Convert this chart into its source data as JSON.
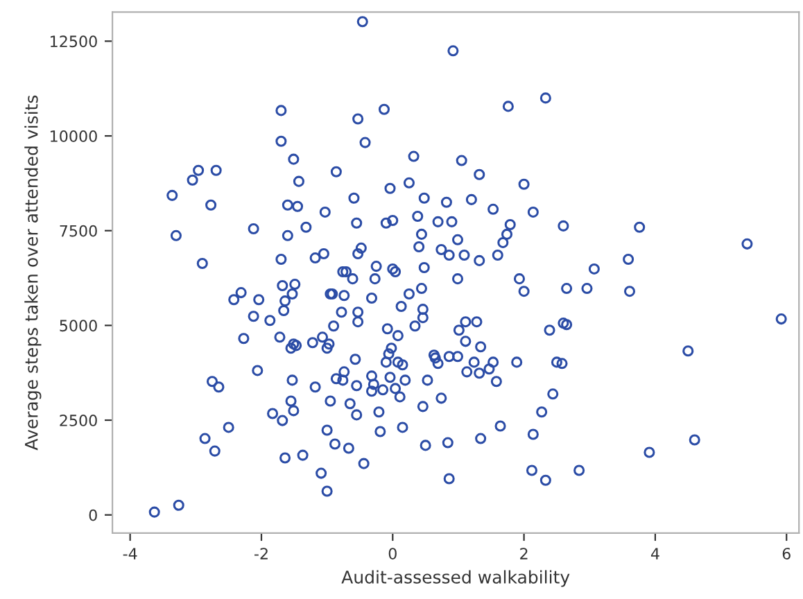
{
  "chart_data": {
    "type": "scatter",
    "xlabel": "Audit-assessed walkability",
    "ylabel": "Average steps taken over attended visits",
    "xlim": [
      -4.27,
      6.19
    ],
    "ylim": [
      -480,
      13270
    ],
    "xticks": [
      -4,
      -2,
      0,
      2,
      4,
      6
    ],
    "yticks": [
      0,
      2500,
      5000,
      7500,
      10000,
      12500
    ],
    "grid": false,
    "legend": false,
    "marker": "circle",
    "series": [
      {
        "color": "#2b4ca6",
        "x": [
          -0.46,
          0.92,
          -0.53,
          -0.13,
          -0.42,
          1.76,
          2.33,
          0.32,
          1.05,
          -0.86,
          1.32,
          0.25,
          -0.04,
          2.0,
          -0.59,
          0.48,
          0.82,
          1.2,
          1.53,
          2.14,
          -0.55,
          -0.1,
          0.0,
          0.38,
          0.69,
          0.9,
          1.79,
          2.6,
          0.44,
          1.74,
          0.99,
          1.68,
          -0.48,
          -0.53,
          0.4,
          0.74,
          0.86,
          1.09,
          1.32,
          1.6,
          -0.71,
          -0.25,
          0.0,
          0.04,
          0.48,
          3.76,
          5.4,
          3.59,
          3.07,
          -1.7,
          -1.7,
          -1.51,
          -2.96,
          -2.69,
          -3.05,
          -1.43,
          -3.36,
          -2.77,
          -1.6,
          -1.45,
          -1.03,
          -3.3,
          -2.12,
          -1.32,
          -1.6,
          -2.9,
          -1.7,
          -1.18,
          -1.05,
          -0.76,
          -1.68,
          -1.49,
          -2.42,
          -2.31,
          -2.04,
          -1.64,
          -1.53,
          -1.66,
          -0.95,
          -2.12,
          -1.87,
          -0.9,
          -0.78,
          -2.27,
          -1.72,
          -1.55,
          -1.51,
          -1.47,
          -1.22,
          -1.07,
          -0.97,
          -1.0,
          -2.06,
          -2.75,
          -2.65,
          -1.53,
          -1.18,
          -0.86,
          -0.76,
          -0.74,
          -1.55,
          -1.51,
          -0.95,
          -1.83,
          -1.68,
          -2.5,
          -2.86,
          -2.71,
          -1.0,
          -0.88,
          -1.64,
          -1.37,
          -1.09,
          -1.0,
          -3.26,
          -3.63,
          -0.61,
          -0.27,
          0.99,
          1.93,
          2.0,
          -0.92,
          -0.74,
          -0.32,
          0.25,
          0.44,
          -0.53,
          -0.53,
          0.13,
          0.46,
          0.46,
          -0.08,
          0.08,
          0.34,
          1.01,
          1.11,
          1.28,
          1.11,
          1.34,
          2.39,
          2.6,
          -0.57,
          -0.02,
          -0.06,
          -0.1,
          0.08,
          0.15,
          0.63,
          0.65,
          0.69,
          0.86,
          0.99,
          1.24,
          1.53,
          1.47,
          1.32,
          1.13,
          1.58,
          1.89,
          2.5,
          2.58,
          -0.55,
          -0.32,
          -0.32,
          -0.29,
          -0.15,
          -0.04,
          0.04,
          0.19,
          0.11,
          0.53,
          0.74,
          -0.65,
          -0.55,
          -0.21,
          0.46,
          2.44,
          2.27,
          1.64,
          0.15,
          -0.19,
          1.34,
          2.14,
          -0.67,
          0.5,
          0.84,
          -0.44,
          0.86,
          2.12,
          2.33,
          2.65,
          2.96,
          3.61,
          5.92,
          2.65,
          4.5,
          4.6,
          3.91,
          2.84
        ],
        "values": [
          13015,
          12245,
          10450,
          10700,
          9825,
          10780,
          11000,
          9460,
          9350,
          9055,
          8980,
          8760,
          8615,
          8725,
          8360,
          8360,
          8250,
          8320,
          8065,
          7990,
          7700,
          7700,
          7770,
          7880,
          7735,
          7735,
          7660,
          7625,
          7405,
          7405,
          7260,
          7185,
          7040,
          6890,
          7075,
          7000,
          6855,
          6855,
          6710,
          6855,
          6415,
          6560,
          6490,
          6415,
          6525,
          7590,
          7150,
          6745,
          6490,
          10670,
          9860,
          9385,
          9090,
          9090,
          8835,
          8800,
          8430,
          8175,
          8175,
          8140,
          7990,
          7370,
          7550,
          7590,
          7370,
          6635,
          6745,
          6780,
          6890,
          6415,
          6050,
          6085,
          5680,
          5865,
          5680,
          5645,
          5830,
          5390,
          5830,
          5240,
          5130,
          4985,
          5350,
          4655,
          4690,
          4400,
          4510,
          4470,
          4545,
          4690,
          4510,
          4400,
          3810,
          3520,
          3375,
          3555,
          3375,
          3595,
          3555,
          3775,
          3005,
          2750,
          3005,
          2675,
          2490,
          2310,
          2015,
          1685,
          2235,
          1870,
          1505,
          1575,
          1100,
          625,
          255,
          75,
          6230,
          6230,
          6230,
          6230,
          5900,
          5830,
          5790,
          5720,
          5830,
          5975,
          5350,
          5095,
          5500,
          5425,
          5205,
          4910,
          4730,
          4985,
          4875,
          5095,
          5095,
          4580,
          4435,
          4875,
          5060,
          4105,
          4400,
          4250,
          4030,
          4030,
          3960,
          4215,
          4140,
          3995,
          4180,
          4180,
          4030,
          4030,
          3850,
          3740,
          3775,
          3520,
          4030,
          4030,
          3995,
          3410,
          3665,
          3265,
          3445,
          3300,
          3630,
          3335,
          3555,
          3115,
          3555,
          3080,
          2935,
          2640,
          2715,
          2860,
          3190,
          2715,
          2345,
          2310,
          2200,
          2015,
          2125,
          1760,
          1835,
          1905,
          1355,
          955,
          1175,
          915,
          5975,
          5975,
          5900,
          5170,
          5020,
          4325,
          1980,
          1650,
          1175
        ]
      }
    ]
  }
}
